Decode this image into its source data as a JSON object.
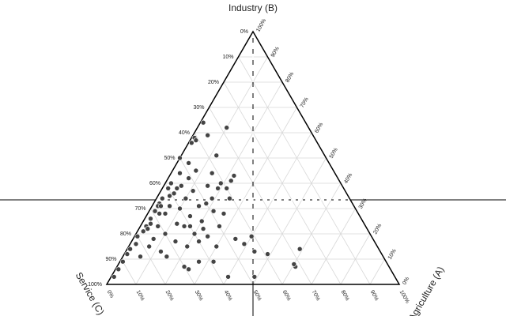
{
  "chart_data": {
    "type": "ternary",
    "a_label": "Agriculture (A)",
    "b_label": "Industry (B)",
    "c_label": "Service (C)",
    "aticks": [
      {
        "value": 0,
        "label": "0%"
      },
      {
        "value": 10,
        "label": "10%"
      },
      {
        "value": 20,
        "label": "20%"
      },
      {
        "value": 30,
        "label": "30%"
      },
      {
        "value": 40,
        "label": "40%"
      },
      {
        "value": 50,
        "label": "50%"
      },
      {
        "value": 60,
        "label": "60%"
      },
      {
        "value": 70,
        "label": "70%"
      },
      {
        "value": 80,
        "label": "80%"
      },
      {
        "value": 90,
        "label": "90%"
      },
      {
        "value": 100,
        "label": "100%"
      }
    ],
    "bticks": [
      {
        "value": 0,
        "label": "0%"
      },
      {
        "value": 10,
        "label": "10%"
      },
      {
        "value": 20,
        "label": "20%"
      },
      {
        "value": 30,
        "label": "30%"
      },
      {
        "value": 40,
        "label": "40%"
      },
      {
        "value": 50,
        "label": "50%"
      },
      {
        "value": 60,
        "label": "60%"
      },
      {
        "value": 70,
        "label": "70%"
      },
      {
        "value": 80,
        "label": "80%"
      },
      {
        "value": 90,
        "label": "90%"
      },
      {
        "value": 100,
        "label": "100%"
      }
    ],
    "cticks": [
      {
        "value": 0,
        "label": "0%"
      },
      {
        "value": 10,
        "label": "10%"
      },
      {
        "value": 20,
        "label": "20%"
      },
      {
        "value": 30,
        "label": "30%"
      },
      {
        "value": 40,
        "label": "40%"
      },
      {
        "value": 50,
        "label": "50%"
      },
      {
        "value": 60,
        "label": "60%"
      },
      {
        "value": 70,
        "label": "70%"
      },
      {
        "value": 80,
        "label": "80%"
      },
      {
        "value": 90,
        "label": "90%"
      },
      {
        "value": 100,
        "label": "100%"
      }
    ],
    "grid": true,
    "color": "#444444",
    "points": [
      [
        1,
        64,
        35
      ],
      [
        10,
        62,
        28
      ],
      [
        1,
        58,
        41
      ],
      [
        2,
        57,
        41
      ],
      [
        1,
        56,
        43
      ],
      [
        5,
        59,
        36
      ],
      [
        12,
        51,
        37
      ],
      [
        0,
        50,
        50
      ],
      [
        4,
        48,
        48
      ],
      [
        8,
        45,
        47
      ],
      [
        3,
        44,
        53
      ],
      [
        14,
        44,
        42
      ],
      [
        22,
        43,
        35
      ],
      [
        7,
        42,
        51
      ],
      [
        19,
        40,
        41
      ],
      [
        22,
        41,
        37
      ],
      [
        2,
        40,
        58
      ],
      [
        15,
        39,
        46
      ],
      [
        6,
        39,
        55
      ],
      [
        2,
        38,
        60
      ],
      [
        11,
        37,
        52
      ],
      [
        19,
        38,
        43
      ],
      [
        22,
        38,
        40
      ],
      [
        5,
        36,
        59
      ],
      [
        2,
        34,
        64
      ],
      [
        10,
        34,
        56
      ],
      [
        19,
        34,
        47
      ],
      [
        25,
        34,
        41
      ],
      [
        2,
        32,
        66
      ],
      [
        6,
        31,
        63
      ],
      [
        16,
        31,
        53
      ],
      [
        10,
        30,
        60
      ],
      [
        2,
        29,
        69
      ],
      [
        22,
        29,
        49
      ],
      [
        6,
        28,
        66
      ],
      [
        15,
        27,
        58
      ],
      [
        2,
        26,
        72
      ],
      [
        20,
        25,
        55
      ],
      [
        12,
        24,
        64
      ],
      [
        2,
        23,
        75
      ],
      [
        6,
        23,
        71
      ],
      [
        15,
        23,
        62
      ],
      [
        27,
        23,
        50
      ],
      [
        2,
        21,
        77
      ],
      [
        10,
        20,
        70
      ],
      [
        20,
        20,
        60
      ],
      [
        25,
        19,
        56
      ],
      [
        1,
        19,
        80
      ],
      [
        7,
        18,
        75
      ],
      [
        35,
        18,
        47
      ],
      [
        40,
        19,
        41
      ],
      [
        15,
        17,
        68
      ],
      [
        23,
        17,
        60
      ],
      [
        2,
        16,
        82
      ],
      [
        39,
        16,
        45
      ],
      [
        7,
        15,
        78
      ],
      [
        20,
        15,
        65
      ],
      [
        30,
        15,
        55
      ],
      [
        1,
        14,
        85
      ],
      [
        59,
        14,
        27
      ],
      [
        12,
        13,
        75
      ],
      [
        44,
        13,
        43
      ],
      [
        1,
        12,
        87
      ],
      [
        49,
        12,
        39
      ],
      [
        15,
        11,
        74
      ],
      [
        6,
        11,
        83
      ],
      [
        27,
        9,
        64
      ],
      [
        1,
        9,
        90
      ],
      [
        32,
        9,
        59
      ],
      [
        23,
        7,
        70
      ],
      [
        61,
        7,
        32
      ],
      [
        1,
        6,
        93
      ],
      [
        60,
        8,
        32
      ],
      [
        25,
        6,
        69
      ],
      [
        1,
        3,
        96
      ],
      [
        40,
        3,
        57
      ],
      [
        49,
        3,
        48
      ],
      [
        2,
        31,
        67
      ],
      [
        3,
        31,
        66
      ],
      [
        4,
        35,
        61
      ],
      [
        5,
        38,
        57
      ],
      [
        4,
        28,
        68
      ],
      [
        3,
        22,
        75
      ],
      [
        3,
        24,
        73
      ],
      [
        18,
        32,
        50
      ],
      [
        26,
        28,
        46
      ],
      [
        17,
        23,
        60
      ],
      [
        22,
        22,
        56
      ]
    ]
  }
}
